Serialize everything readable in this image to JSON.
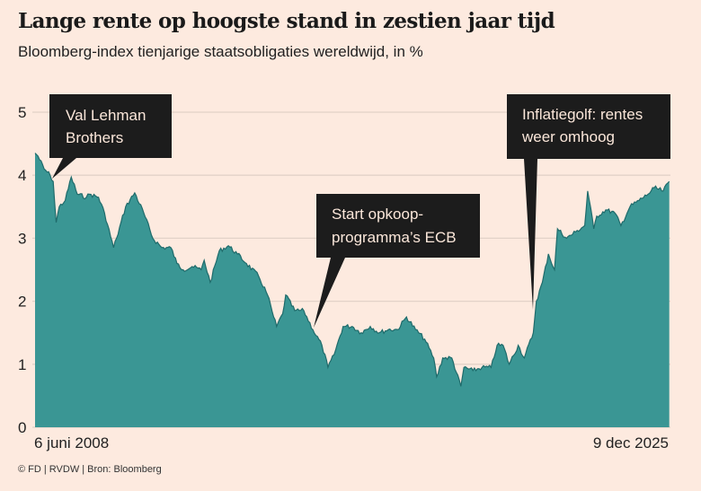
{
  "title": "Lange rente op hoogste stand in zestien jaar tijd",
  "subtitle": "Bloomberg-index tienjarige staatsobligaties wereldwijd, in %",
  "footer": "© FD | RVDW | Bron: Bloomberg",
  "colors": {
    "background": "#fdeadf",
    "area_fill": "#3a9694",
    "area_line": "#1f6b6b",
    "annotation_box": "#1c1c1c",
    "gridline": "#e3d2c8"
  },
  "chart_data": {
    "type": "area",
    "title": "Lange rente op hoogste stand in zestien jaar tijd",
    "ylabel": "",
    "xlabel": "",
    "ylim": [
      0,
      5
    ],
    "yticks": [
      "0",
      "1",
      "2",
      "3",
      "4",
      "5"
    ],
    "grid": true,
    "x_start_label": "6 juni 2008",
    "x_end_label": "9 dec 2025",
    "x_range": [
      "2008-06-06",
      "2025-12-09"
    ],
    "series": [
      {
        "x": [
          "2008-06",
          "2008-07",
          "2008-09",
          "2008-11",
          "2008-12",
          "2009-01",
          "2009-02",
          "2009-04",
          "2009-06",
          "2009-08",
          "2009-11",
          "2009-12",
          "2010-03",
          "2010-05",
          "2010-08",
          "2010-09",
          "2010-12",
          "2011-03",
          "2011-06",
          "2011-09",
          "2011-12",
          "2012-03",
          "2012-05",
          "2012-07",
          "2012-10",
          "2013-01",
          "2013-02",
          "2013-04",
          "2013-07",
          "2013-10",
          "2014-01",
          "2014-04",
          "2014-08",
          "2014-11",
          "2015-01",
          "2015-02",
          "2015-04",
          "2015-05",
          "2015-08",
          "2015-11",
          "2016-02",
          "2016-05",
          "2016-07",
          "2016-09",
          "2016-12",
          "2017-03",
          "2017-06",
          "2017-09",
          "2017-12",
          "2018-03",
          "2018-06",
          "2018-09",
          "2018-12",
          "2019-03",
          "2019-06",
          "2019-07",
          "2019-09",
          "2019-12",
          "2020-03",
          "2020-04",
          "2020-07",
          "2020-10",
          "2021-01",
          "2021-03",
          "2021-05",
          "2021-07",
          "2021-10",
          "2021-12",
          "2022-03",
          "2022-04",
          "2022-06",
          "2022-08",
          "2022-10",
          "2022-11",
          "2023-02",
          "2023-05",
          "2023-08",
          "2023-09",
          "2023-11",
          "2023-12",
          "2024-03",
          "2024-06",
          "2024-08",
          "2024-11",
          "2025-02",
          "2025-05",
          "2025-07",
          "2025-10",
          "2025-12"
        ],
        "y": [
          4.35,
          4.3,
          4.1,
          4.0,
          3.9,
          3.25,
          3.5,
          3.6,
          3.97,
          3.7,
          3.65,
          3.7,
          3.65,
          3.4,
          2.85,
          3.0,
          3.5,
          3.72,
          3.4,
          3.0,
          2.85,
          2.85,
          2.6,
          2.5,
          2.55,
          2.5,
          2.65,
          2.3,
          2.8,
          2.88,
          2.75,
          2.6,
          2.4,
          2.1,
          1.75,
          1.6,
          1.8,
          2.1,
          1.85,
          1.85,
          1.55,
          1.3,
          0.95,
          1.15,
          1.6,
          1.6,
          1.5,
          1.6,
          1.5,
          1.55,
          1.55,
          1.75,
          1.55,
          1.4,
          1.1,
          0.8,
          1.1,
          1.1,
          0.65,
          0.95,
          0.9,
          0.95,
          0.95,
          1.3,
          1.3,
          1.0,
          1.3,
          1.1,
          1.5,
          2.0,
          2.3,
          2.75,
          2.5,
          3.15,
          3.0,
          3.1,
          3.2,
          3.75,
          3.15,
          3.35,
          3.45,
          3.4,
          3.2,
          3.5,
          3.6,
          3.7,
          3.8,
          3.75,
          3.9
        ]
      }
    ],
    "annotations": [
      {
        "lines": [
          "Val Lehman",
          "Brothers"
        ],
        "date": "2008-12",
        "value": 3.9
      },
      {
        "lines": [
          "Start opkoop-",
          "programma’s ECB"
        ],
        "date": "2015-02",
        "value": 1.6
      },
      {
        "lines": [
          "Inflatiegolf: rentes",
          "weer omhoog"
        ],
        "date": "2022-03",
        "value": 1.8
      }
    ]
  }
}
